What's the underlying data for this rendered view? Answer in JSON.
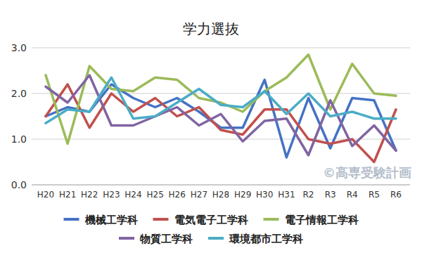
{
  "chart_data": {
    "type": "line",
    "title": "学力選抜",
    "annotations": [
      "©高専受験計画"
    ],
    "categories": [
      "H20",
      "H21",
      "H22",
      "H23",
      "H24",
      "H25",
      "H26",
      "H27",
      "H28",
      "H29",
      "H30",
      "H31",
      "R2",
      "R3",
      "R4",
      "R5",
      "R6"
    ],
    "series": [
      {
        "name": "機械工学科",
        "color": "#4472c4",
        "values": [
          1.5,
          1.7,
          1.6,
          2.2,
          1.9,
          1.7,
          1.9,
          1.6,
          1.25,
          1.25,
          2.3,
          0.6,
          1.9,
          0.8,
          1.9,
          1.85,
          0.75
        ]
      },
      {
        "name": "電気電子工学科",
        "color": "#c0504d",
        "values": [
          1.5,
          2.2,
          1.25,
          2.0,
          1.6,
          1.9,
          1.5,
          1.7,
          1.2,
          1.1,
          1.65,
          1.65,
          1.0,
          0.9,
          1.0,
          0.5,
          1.65
        ]
      },
      {
        "name": "電子情報工学科",
        "color": "#9bbb59",
        "values": [
          2.4,
          0.9,
          2.6,
          2.1,
          2.05,
          2.35,
          2.3,
          1.9,
          1.8,
          1.6,
          2.05,
          2.35,
          2.85,
          1.65,
          2.65,
          2.0,
          1.95
        ]
      },
      {
        "name": "物質工学科",
        "color": "#8064a2",
        "values": [
          2.15,
          1.8,
          2.4,
          1.3,
          1.3,
          1.5,
          1.7,
          1.3,
          1.55,
          0.95,
          1.4,
          1.45,
          0.65,
          1.85,
          0.85,
          1.3,
          0.75
        ]
      },
      {
        "name": "環境都市工学科",
        "color": "#4bacc6",
        "values": [
          1.35,
          1.65,
          1.6,
          2.35,
          1.45,
          1.5,
          1.8,
          2.1,
          1.75,
          1.7,
          2.05,
          1.55,
          2.0,
          1.5,
          1.6,
          1.45,
          1.45
        ]
      }
    ],
    "ylim": [
      0,
      3
    ],
    "yticks": [
      {
        "value": 0,
        "label": "0.0"
      },
      {
        "value": 1,
        "label": "1.0"
      },
      {
        "value": 2,
        "label": "2.0"
      },
      {
        "value": 3,
        "label": "3.0"
      }
    ],
    "grid": true,
    "legend": "bottom"
  }
}
